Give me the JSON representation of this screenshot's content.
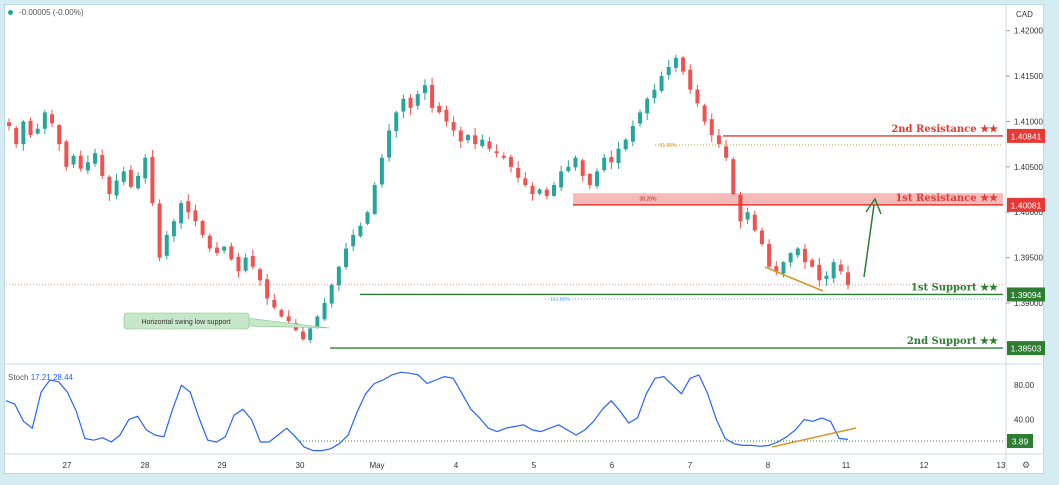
{
  "header": {
    "change_text": "-0.00005 (-0.00%)",
    "currency": "CAD"
  },
  "stoch": {
    "label": "Stoch",
    "k_value": "17.21",
    "d_value": "28.44"
  },
  "colors": {
    "up_candle": "#26a69a",
    "down_candle": "#ef5350",
    "resistance": "#e53935",
    "support": "#2e7d32",
    "stoch_line": "#2962ff",
    "trend_line": "#d39a2a"
  },
  "annotations": {
    "resistance_2": "2nd Resistance ★★",
    "resistance_1": "1st Resistance ★★",
    "support_1": "1st Support ★★",
    "support_2": "2nd Support ★★",
    "swing_callout": "Horizontal swing low support",
    "fib_618": "61.80%",
    "fib_382": "38.20%",
    "fib_1618": "161.80%"
  },
  "chart_data": [
    {
      "type": "candlestick",
      "x_ticks": [
        "27",
        "28",
        "29",
        "30",
        "May",
        "4",
        "5",
        "6",
        "7",
        "8",
        "11",
        "12",
        "13"
      ],
      "y_ticks": [
        "1.42000",
        "1.41500",
        "1.41000",
        "1.40500",
        "1.40000",
        "1.39500",
        "1.39000"
      ],
      "ylim": [
        1.3835,
        1.4225
      ],
      "levels": [
        {
          "name": "2nd Resistance",
          "value": 1.40841
        },
        {
          "name": "1st Resistance",
          "value": 1.40081
        },
        {
          "name": "1st Support",
          "value": 1.39094
        },
        {
          "name": "2nd Support",
          "value": 1.38503
        }
      ],
      "price_labels": [
        "1.40841",
        "1.40081",
        "1.39094",
        "1.38503"
      ],
      "close_path": [
        1.4095,
        1.4075,
        1.41,
        1.4085,
        1.4092,
        1.411,
        1.4098,
        1.4075,
        1.405,
        1.4062,
        1.4048,
        1.4055,
        1.4065,
        1.404,
        1.402,
        1.4035,
        1.4045,
        1.4028,
        1.404,
        1.406,
        1.401,
        1.395,
        1.3975,
        1.399,
        1.401,
        1.4,
        1.399,
        1.3975,
        1.396,
        1.3955,
        1.3962,
        1.3948,
        1.3935,
        1.395,
        1.394,
        1.3925,
        1.3905,
        1.3895,
        1.3885,
        1.388,
        1.387,
        1.386,
        1.3872,
        1.3885,
        1.39,
        1.392,
        1.394,
        1.396,
        1.3975,
        1.3985,
        1.4,
        1.403,
        1.406,
        1.409,
        1.411,
        1.4125,
        1.4115,
        1.413,
        1.414,
        1.4115,
        1.411,
        1.41,
        1.409,
        1.4078,
        1.4085,
        1.4075,
        1.408,
        1.407,
        1.4065,
        1.406,
        1.405,
        1.4038,
        1.403,
        1.402,
        1.4025,
        1.4018,
        1.403,
        1.4045,
        1.405,
        1.406,
        1.404,
        1.403,
        1.4045,
        1.406,
        1.4055,
        1.407,
        1.408,
        1.4095,
        1.411,
        1.4125,
        1.4135,
        1.415,
        1.416,
        1.417,
        1.4155,
        1.4135,
        1.412,
        1.41,
        1.4085,
        1.4075,
        1.406,
        1.402,
        1.399,
        1.4,
        1.398,
        1.3965,
        1.394,
        1.3935,
        1.3945,
        1.3955,
        1.396,
        1.3945,
        1.394,
        1.3925,
        1.393,
        1.3945,
        1.3935,
        1.392
      ],
      "stochastic": {
        "k_last": 17.21,
        "d_last": 28.44,
        "y_ticks": [
          "80.00",
          "40.00"
        ],
        "ylim": [
          0,
          100
        ],
        "marker_value": "3.89",
        "k_path": [
          62,
          58,
          38,
          30,
          72,
          86,
          84,
          72,
          50,
          18,
          16,
          19,
          14,
          22,
          40,
          44,
          28,
          22,
          20,
          52,
          80,
          72,
          42,
          16,
          14,
          20,
          45,
          52,
          40,
          14,
          14,
          22,
          30,
          20,
          8,
          4,
          4,
          6,
          12,
          22,
          48,
          70,
          82,
          86,
          92,
          95,
          94,
          92,
          82,
          86,
          90,
          88,
          70,
          52,
          42,
          30,
          26,
          30,
          32,
          34,
          28,
          26,
          30,
          34,
          28,
          22,
          28,
          38,
          52,
          62,
          50,
          36,
          42,
          70,
          88,
          90,
          80,
          70,
          88,
          92,
          70,
          40,
          18,
          12,
          10,
          10,
          9,
          10,
          14,
          20,
          28,
          40,
          38,
          42,
          38,
          18,
          17
        ]
      }
    }
  ]
}
